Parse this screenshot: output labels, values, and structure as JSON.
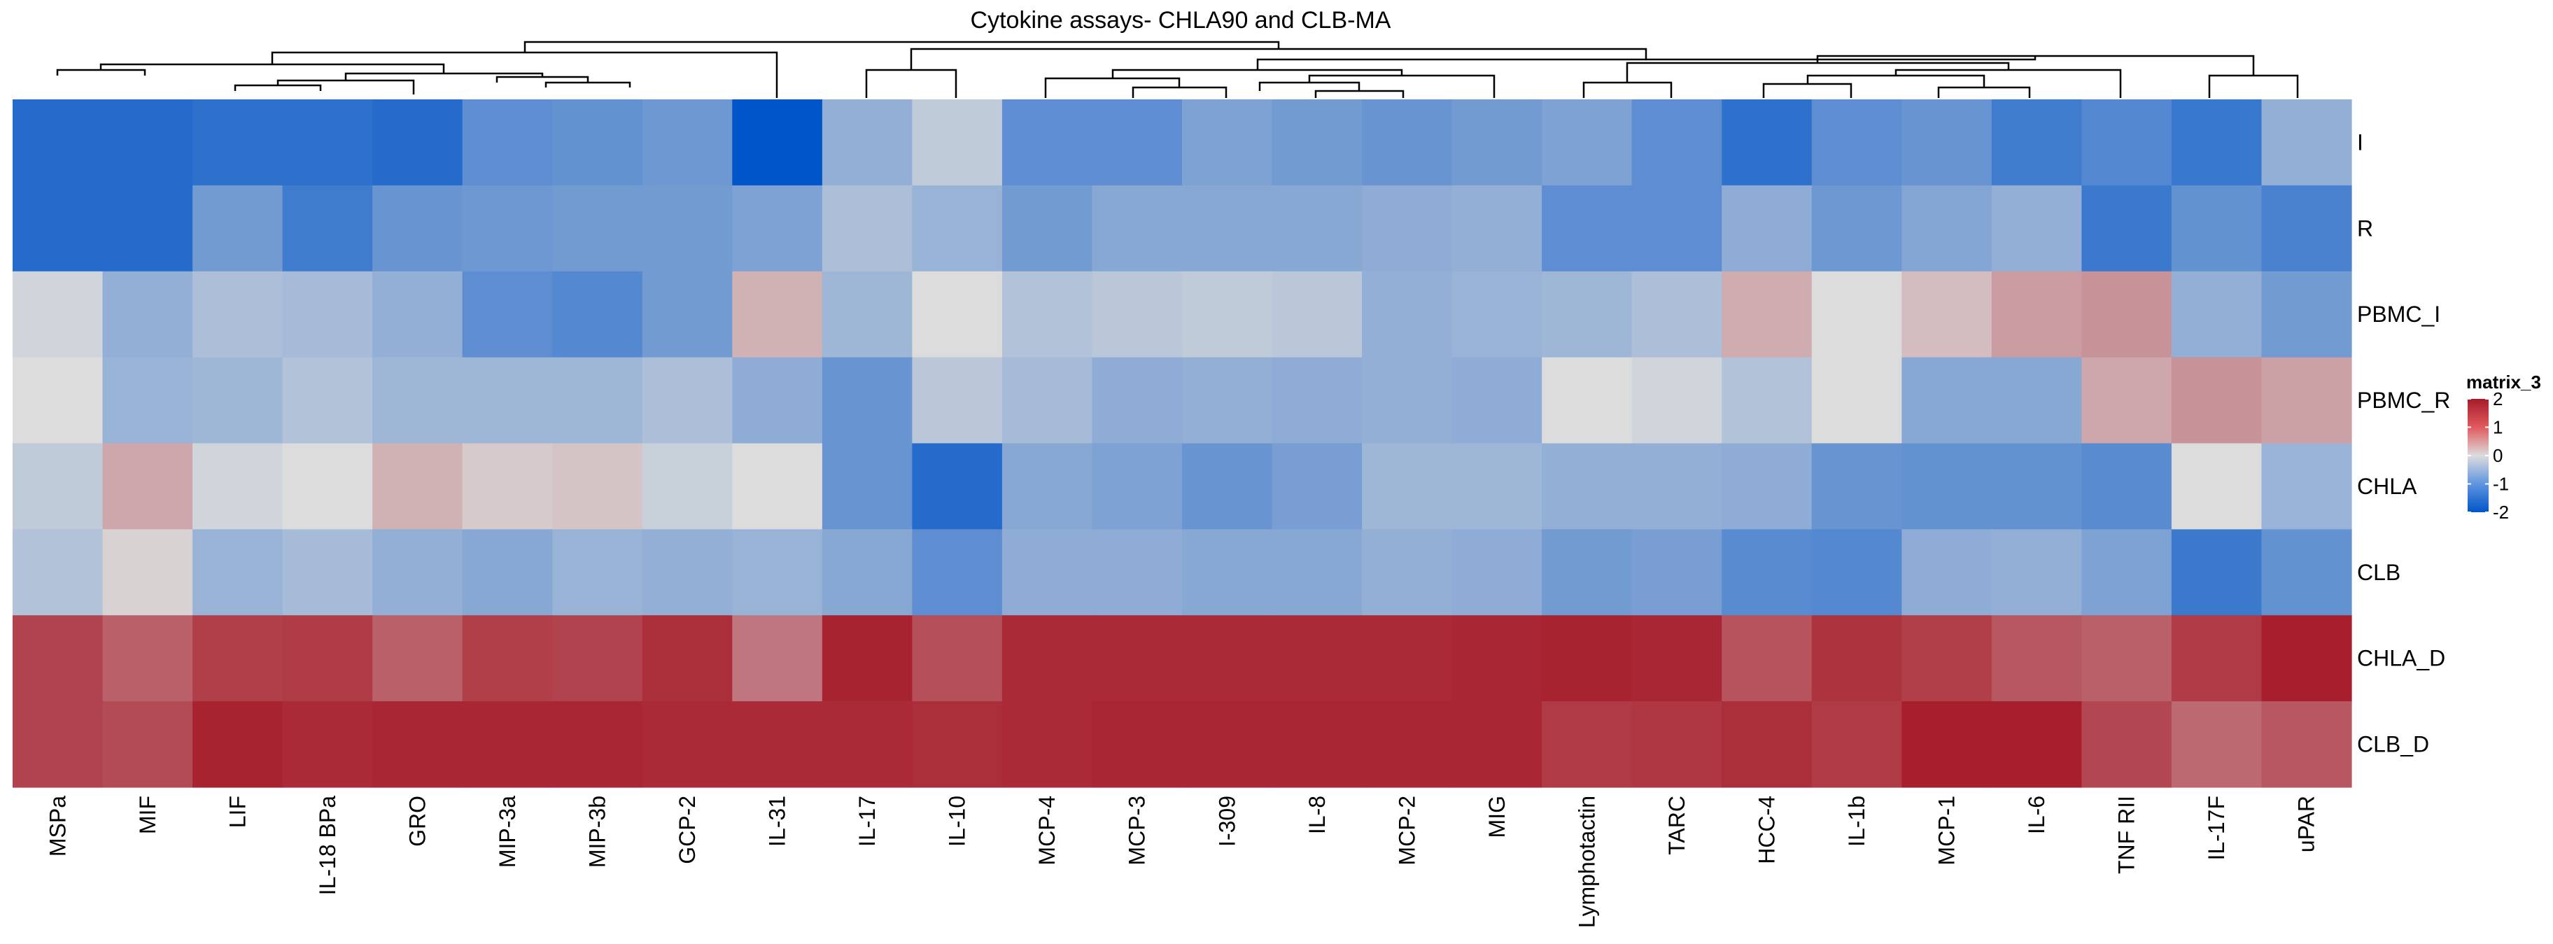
{
  "chart_data": {
    "type": "heatmap",
    "title": "Cytokine assays- CHLA90 and CLB-MA",
    "columns": [
      "MSPa",
      "MIF",
      "LIF",
      "IL-18 BPa",
      "GRO",
      "MIP-3a",
      "MIP-3b",
      "GCP-2",
      "IL-31",
      "IL-17",
      "IL-10",
      "MCP-4",
      "MCP-3",
      "I-309",
      "IL-8",
      "MCP-2",
      "MIG",
      "Lymphotactin",
      "TARC",
      "HCC-4",
      "IL-1b",
      "MCP-1",
      "IL-6",
      "TNF RII",
      "IL-17F",
      "uPAR"
    ],
    "rows": [
      "I",
      "R",
      "PBMC_I",
      "PBMC_R",
      "CHLA",
      "CLB",
      "CHLA_D",
      "CLB_D"
    ],
    "values": [
      [
        -1.6,
        -1.6,
        -1.5,
        -1.5,
        -1.6,
        -1.0,
        -0.95,
        -0.85,
        -2.0,
        -0.5,
        -0.15,
        -1.0,
        -1.0,
        -0.7,
        -0.8,
        -0.9,
        -0.8,
        -0.7,
        -1.0,
        -1.5,
        -1.0,
        -0.9,
        -1.3,
        -1.1,
        -1.4,
        -0.5
      ],
      [
        -1.6,
        -1.6,
        -0.8,
        -1.3,
        -0.9,
        -0.85,
        -0.8,
        -0.8,
        -0.7,
        -0.3,
        -0.45,
        -0.8,
        -0.6,
        -0.6,
        -0.6,
        -0.55,
        -0.5,
        -1.0,
        -1.0,
        -0.55,
        -0.85,
        -0.65,
        -0.5,
        -1.35,
        -0.95,
        -1.2
      ],
      [
        -0.05,
        -0.5,
        -0.3,
        -0.35,
        -0.5,
        -1.0,
        -1.1,
        -0.8,
        0.3,
        -0.4,
        0.0,
        -0.25,
        -0.2,
        -0.15,
        -0.2,
        -0.5,
        -0.45,
        -0.4,
        -0.3,
        0.35,
        0.0,
        0.2,
        0.5,
        0.6,
        -0.5,
        -0.8
      ],
      [
        0.0,
        -0.45,
        -0.4,
        -0.25,
        -0.4,
        -0.4,
        -0.4,
        -0.3,
        -0.55,
        -0.9,
        -0.2,
        -0.35,
        -0.55,
        -0.5,
        -0.55,
        -0.5,
        -0.55,
        0.0,
        -0.05,
        -0.25,
        0.0,
        -0.6,
        -0.6,
        0.4,
        0.6,
        0.45
      ],
      [
        -0.15,
        0.4,
        -0.05,
        0.0,
        0.3,
        0.1,
        0.15,
        -0.1,
        0.0,
        -0.9,
        -1.6,
        -0.6,
        -0.7,
        -0.9,
        -0.75,
        -0.4,
        -0.4,
        -0.5,
        -0.5,
        -0.55,
        -0.9,
        -0.95,
        -0.95,
        -1.05,
        0.0,
        -0.45
      ],
      [
        -0.25,
        0.05,
        -0.45,
        -0.35,
        -0.5,
        -0.6,
        -0.45,
        -0.5,
        -0.45,
        -0.6,
        -1.0,
        -0.55,
        -0.55,
        -0.6,
        -0.6,
        -0.5,
        -0.55,
        -0.8,
        -0.75,
        -1.05,
        -1.1,
        -0.55,
        -0.5,
        -0.7,
        -1.35,
        -0.95
      ],
      [
        1.5,
        1.15,
        1.55,
        1.6,
        1.15,
        1.55,
        1.5,
        1.75,
        0.9,
        1.9,
        1.35,
        1.8,
        1.8,
        1.8,
        1.8,
        1.8,
        1.85,
        1.9,
        1.85,
        1.3,
        1.7,
        1.55,
        1.25,
        1.15,
        1.6,
        1.95
      ],
      [
        1.5,
        1.4,
        1.9,
        1.8,
        1.85,
        1.85,
        1.85,
        1.8,
        1.8,
        1.8,
        1.75,
        1.8,
        1.85,
        1.85,
        1.85,
        1.85,
        1.85,
        1.6,
        1.65,
        1.75,
        1.6,
        1.95,
        1.95,
        1.45,
        1.05,
        1.25
      ]
    ],
    "legend": {
      "title": "matrix_3",
      "ticks": [
        2,
        1,
        0,
        -1,
        -2
      ],
      "range": [
        -2,
        2
      ],
      "colors": [
        "#0055c8",
        "#dcdcdc",
        "#a61b29"
      ]
    },
    "xlabel": "",
    "ylabel": "",
    "dendrogram": "top (column clustering)",
    "legend_position": "right"
  }
}
